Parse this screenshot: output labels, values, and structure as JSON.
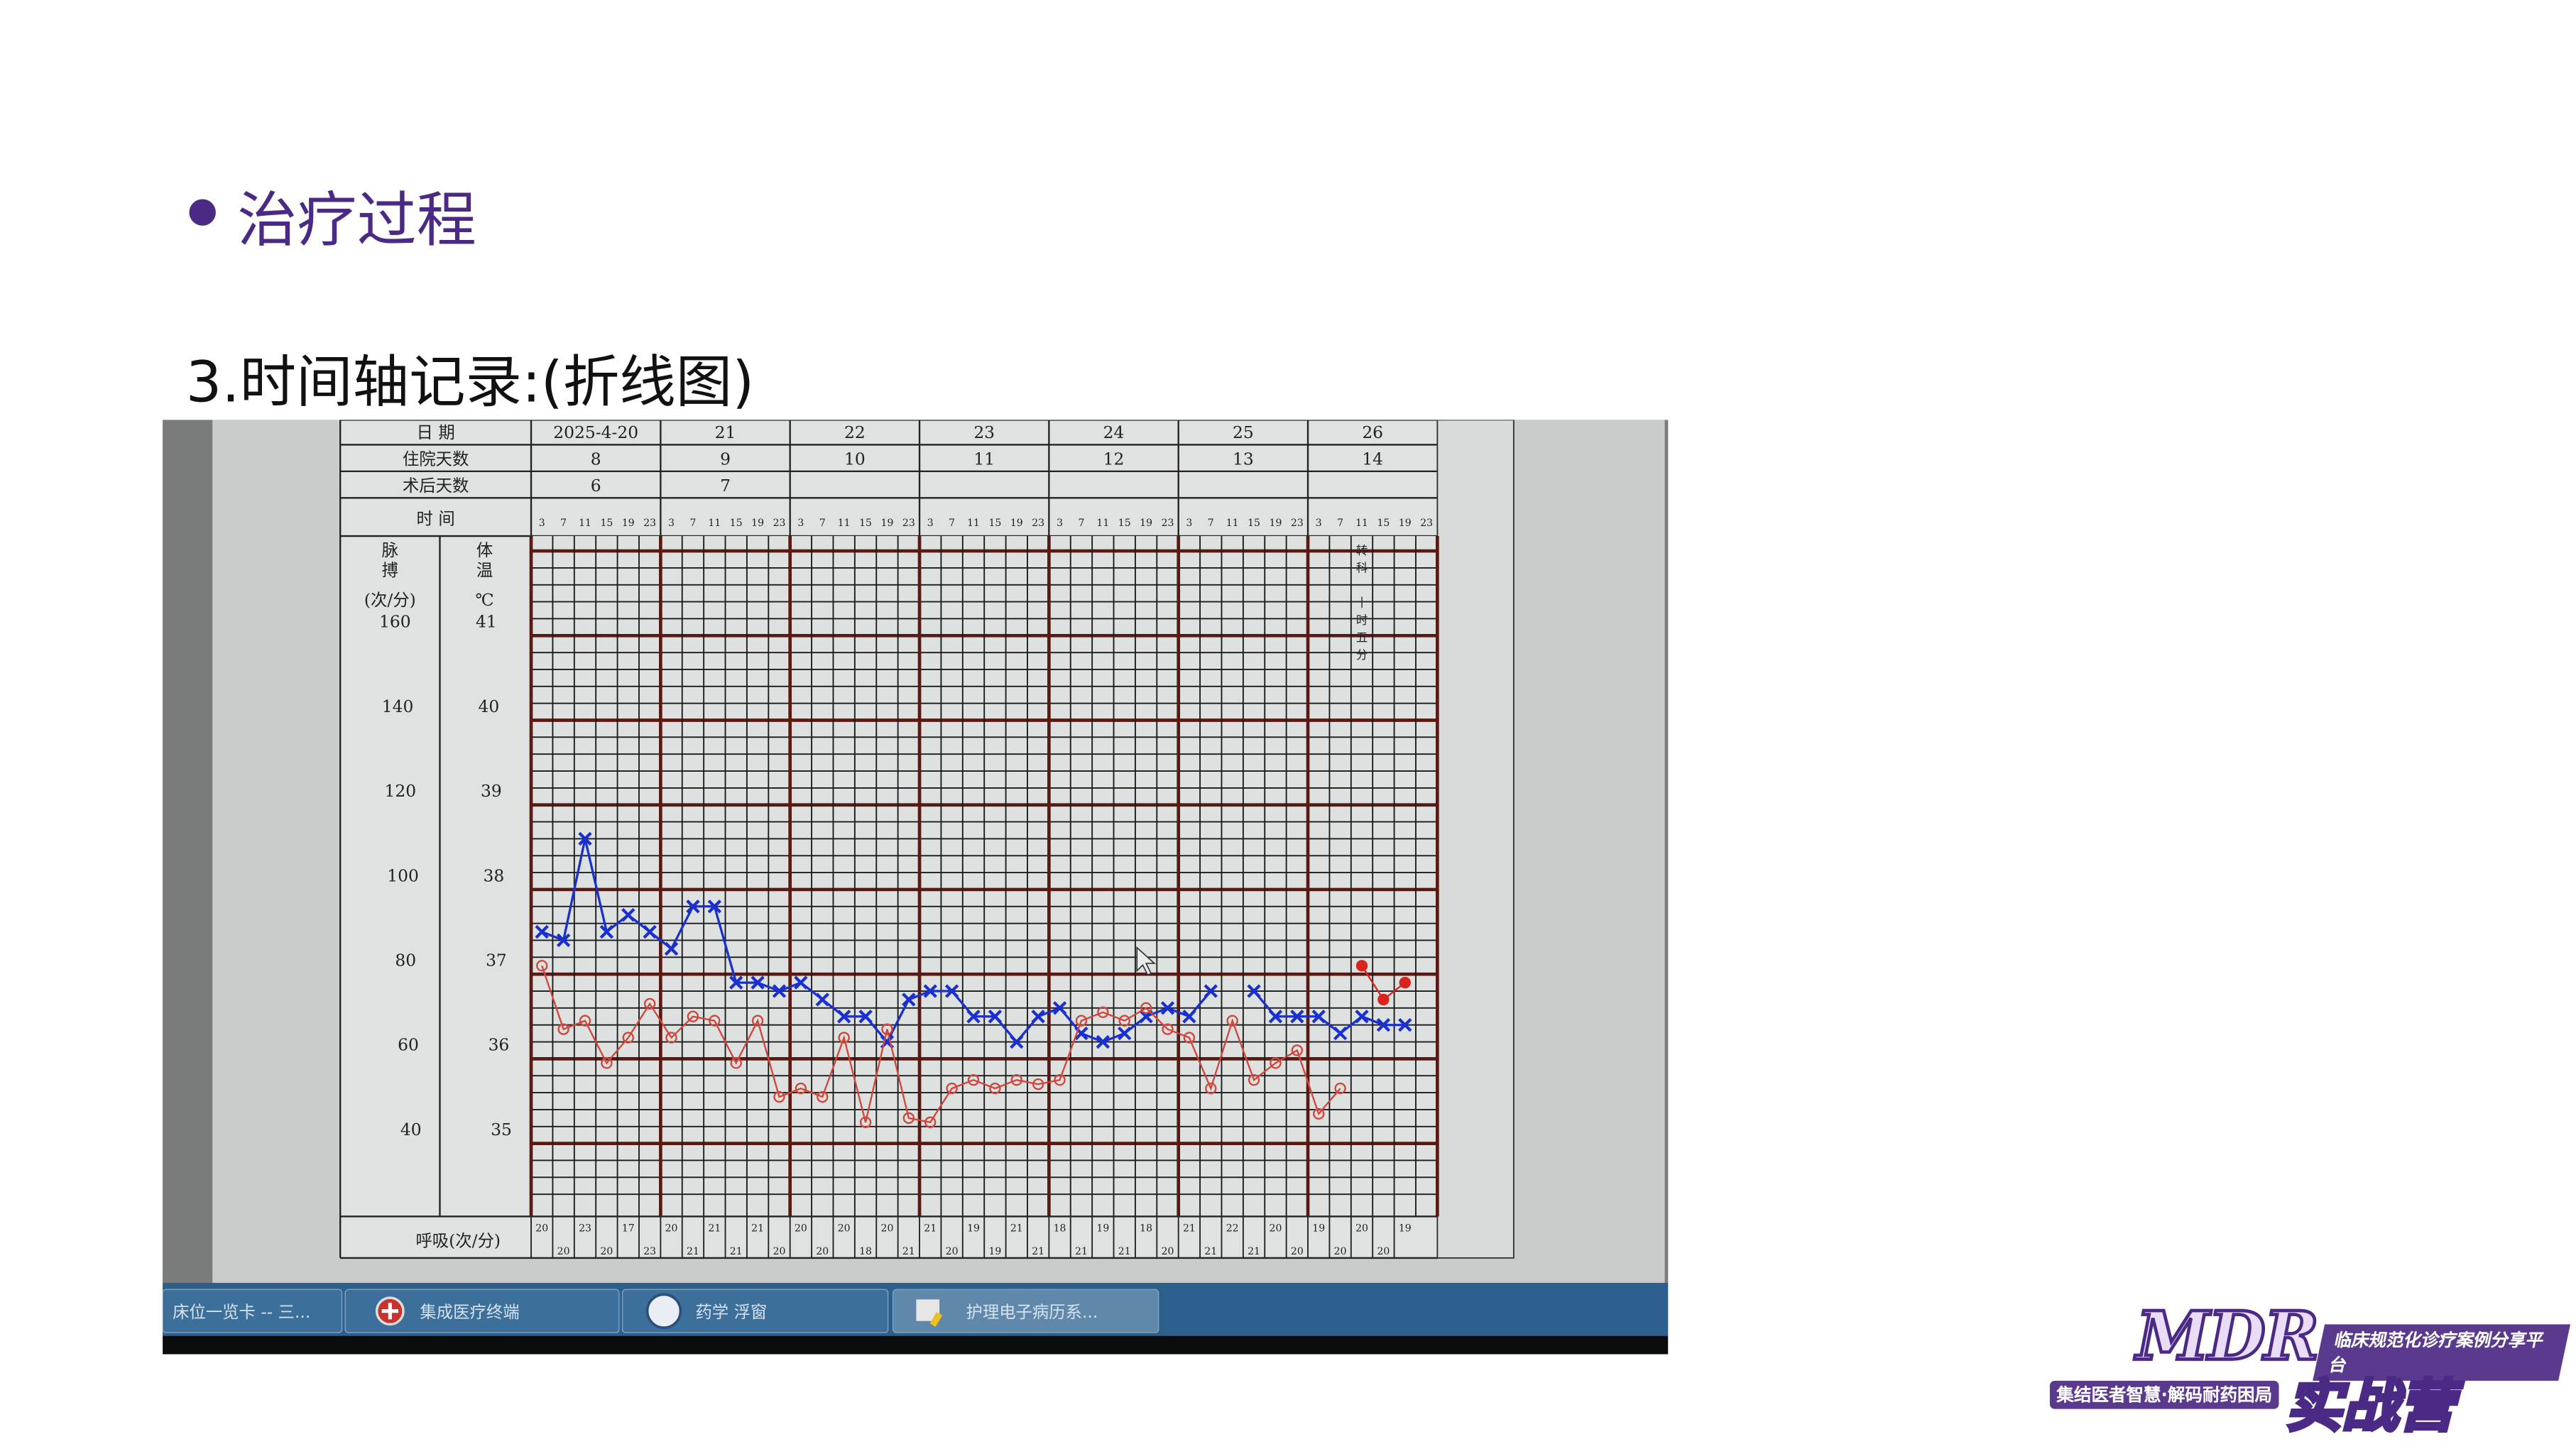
{
  "slide": {
    "title": "治疗过程",
    "subtitle": "3.时间轴记录:(折线图)"
  },
  "logo": {
    "main": "MDR",
    "band": "临床规范化诊疗案例分享平台",
    "slogan": "集结医者智慧·解码耐药困局",
    "camp": "实战营"
  },
  "taskbar": {
    "items": [
      {
        "label": "床位一览卡 -- 三..."
      },
      {
        "label": "集成医疗终端",
        "icon": "red-cross-icon"
      },
      {
        "label": "药学 浮窗",
        "icon": "pharmacy-icon"
      },
      {
        "label": "护理电子病历系...",
        "icon": "nursing-record-icon"
      }
    ]
  },
  "chart_data": {
    "type": "line",
    "header": {
      "date_label": "日 期",
      "dates": [
        "2025-4-20",
        "21",
        "22",
        "23",
        "24",
        "25",
        "26"
      ],
      "hosp_label": "住院天数",
      "hosp_days": [
        "8",
        "9",
        "10",
        "11",
        "12",
        "13",
        "14"
      ],
      "postop_label": "术后天数",
      "postop_days": [
        "6",
        "7",
        "",
        "",
        "",
        "",
        ""
      ],
      "time_label": "时 间",
      "times": [
        "3",
        "7",
        "11",
        "15",
        "19",
        "23"
      ]
    },
    "pulse_axis": {
      "label": "脉搏",
      "unit": "(次/分)",
      "ticks": [
        160,
        140,
        120,
        100,
        80,
        60,
        40
      ]
    },
    "temp_axis": {
      "label": "体温",
      "unit": "℃",
      "ticks": [
        41,
        40,
        39,
        38,
        37,
        36,
        35
      ]
    },
    "ylim_temp": [
      34.2,
      42
    ],
    "grid": true,
    "series": [
      {
        "marker": "x",
        "color": "#1a2fd0",
        "values": [
          37.5,
          37.4,
          38.6,
          37.5,
          37.7,
          37.5,
          37.3,
          37.8,
          37.8,
          36.9,
          36.9,
          36.8,
          36.9,
          36.7,
          36.5,
          36.5,
          36.2,
          36.7,
          36.8,
          36.8,
          36.5,
          36.5,
          36.2,
          36.5,
          36.6,
          36.3,
          36.2,
          36.3,
          36.5,
          36.6,
          36.5,
          36.8,
          null,
          36.8,
          36.5,
          36.5,
          36.5,
          36.3,
          36.5,
          36.4,
          36.4,
          null
        ]
      },
      {
        "marker": "open-circle",
        "color": "#d2453a",
        "axis": "pulse",
        "values": [
          82,
          67,
          69,
          59,
          65,
          73,
          65,
          70,
          69,
          59,
          69,
          51,
          53,
          51,
          65,
          45,
          67,
          46,
          45,
          53,
          55,
          53,
          55,
          54,
          55,
          69,
          71,
          69,
          72,
          67,
          65,
          53,
          69,
          55,
          59,
          62,
          47,
          53,
          null,
          null,
          null,
          null
        ]
      },
      {
        "marker": "filled-circle",
        "color": "#d8241c",
        "axis": "pulse",
        "values": [
          null,
          null,
          null,
          null,
          null,
          null,
          null,
          null,
          null,
          null,
          null,
          null,
          null,
          null,
          null,
          null,
          null,
          null,
          null,
          null,
          null,
          null,
          null,
          null,
          null,
          null,
          null,
          null,
          null,
          null,
          null,
          null,
          null,
          null,
          null,
          null,
          null,
          null,
          82,
          74,
          78,
          null
        ]
      }
    ],
    "annotation": {
      "slot": 38,
      "chars": [
        "转",
        "科",
        "",
        "十",
        "时",
        "五",
        "分"
      ]
    },
    "respiration": {
      "label": "呼吸(次/分)",
      "values": [
        20,
        20,
        23,
        20,
        17,
        23,
        20,
        21,
        21,
        21,
        21,
        20,
        20,
        20,
        20,
        18,
        20,
        21,
        21,
        20,
        19,
        19,
        21,
        21,
        18,
        21,
        19,
        21,
        18,
        20,
        21,
        21,
        22,
        21,
        20,
        20,
        19,
        20,
        20,
        20,
        19
      ]
    }
  }
}
